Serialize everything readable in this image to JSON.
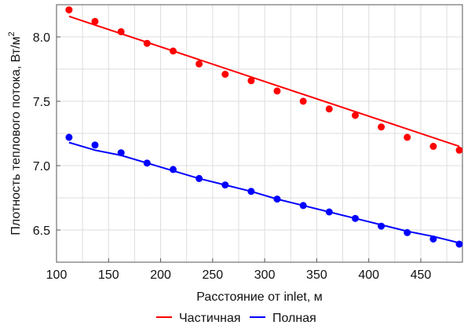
{
  "chart_data": {
    "type": "scatter",
    "xlabel": "Расстояние от inlet, м",
    "ylabel_text": "Плотность теплового потока, Вт/м",
    "ylabel_superscript": "2",
    "xlim": [
      100,
      490
    ],
    "ylim": [
      6.25,
      8.25
    ],
    "x_ticks": [
      100,
      150,
      200,
      250,
      300,
      350,
      400,
      450
    ],
    "x_tick_labels": [
      "100",
      "150",
      "200",
      "250",
      "300",
      "350",
      "400",
      "450"
    ],
    "y_ticks": [
      6.5,
      7.0,
      7.5,
      8.0
    ],
    "y_tick_labels": [
      "6.5",
      "7.0",
      "7.5",
      "8.0"
    ],
    "x_grid": [
      125,
      150,
      175,
      200,
      225,
      250,
      275,
      300,
      325,
      350,
      375,
      400,
      425,
      450,
      475
    ],
    "y_grid": [
      6.5,
      6.75,
      7.0,
      7.25,
      7.5,
      7.75,
      8.0,
      8.25
    ],
    "grid": true,
    "legend_position": "bottom",
    "series": [
      {
        "name": "Частичная",
        "color": "#ff0000",
        "points": [
          [
            112,
            8.21
          ],
          [
            137,
            8.12
          ],
          [
            162,
            8.04
          ],
          [
            187,
            7.95
          ],
          [
            212,
            7.89
          ],
          [
            237,
            7.79
          ],
          [
            262,
            7.71
          ],
          [
            287,
            7.66
          ],
          [
            312,
            7.58
          ],
          [
            337,
            7.5
          ],
          [
            362,
            7.44
          ],
          [
            387,
            7.39
          ],
          [
            412,
            7.3
          ],
          [
            437,
            7.22
          ],
          [
            462,
            7.15
          ],
          [
            487,
            7.12
          ]
        ],
        "fit_line": [
          [
            112,
            8.16
          ],
          [
            487,
            7.15
          ]
        ]
      },
      {
        "name": "Полная",
        "color": "#0000ff",
        "points": [
          [
            112,
            7.22
          ],
          [
            137,
            7.16
          ],
          [
            162,
            7.1
          ],
          [
            187,
            7.02
          ],
          [
            212,
            6.97
          ],
          [
            237,
            6.9
          ],
          [
            262,
            6.85
          ],
          [
            287,
            6.8
          ],
          [
            312,
            6.74
          ],
          [
            337,
            6.69
          ],
          [
            362,
            6.64
          ],
          [
            387,
            6.59
          ],
          [
            412,
            6.53
          ],
          [
            437,
            6.48
          ],
          [
            462,
            6.43
          ],
          [
            487,
            6.39
          ]
        ],
        "fit_line": [
          [
            112,
            7.18
          ],
          [
            137,
            7.12
          ],
          [
            162,
            7.08
          ],
          [
            187,
            7.02
          ],
          [
            212,
            6.96
          ],
          [
            237,
            6.9
          ],
          [
            262,
            6.85
          ],
          [
            287,
            6.8
          ],
          [
            312,
            6.74
          ],
          [
            337,
            6.69
          ],
          [
            362,
            6.64
          ],
          [
            387,
            6.59
          ],
          [
            412,
            6.54
          ],
          [
            437,
            6.49
          ],
          [
            462,
            6.45
          ],
          [
            487,
            6.4
          ]
        ]
      }
    ]
  }
}
